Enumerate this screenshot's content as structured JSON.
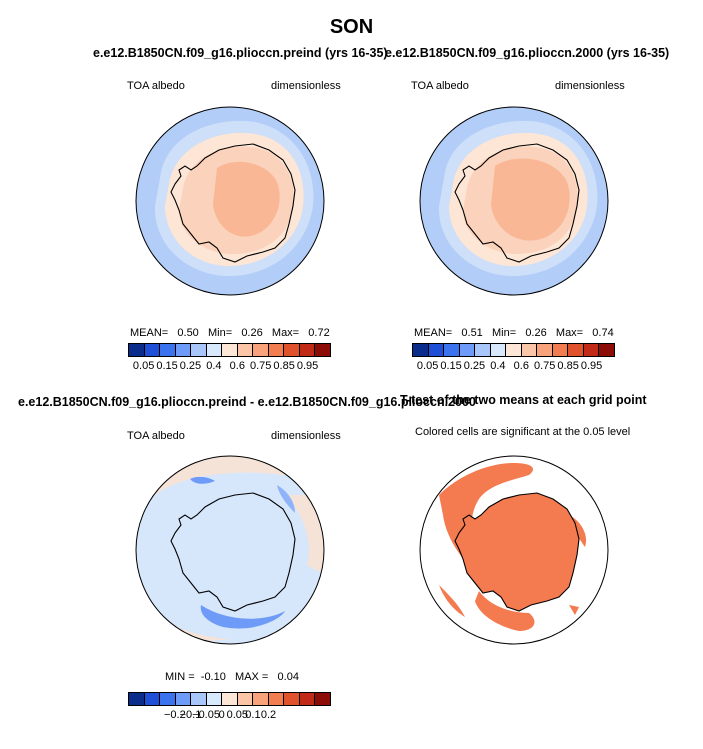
{
  "season": "SON",
  "colors": {
    "cb10": [
      "#0a2c8a",
      "#1f4fd6",
      "#3b73ef",
      "#6e9bf7",
      "#a9c6fb",
      "#d8e8fd",
      "#fde6d5",
      "#fbc6a8",
      "#f8a37c",
      "#f27d51",
      "#e0522c",
      "#c02a16",
      "#8c0d08"
    ],
    "ocean": "#b2cdf7",
    "shelf": "#cddff9",
    "ring": "#eaeaef",
    "land_light": "#fbd2bb",
    "land_mid": "#f9b795",
    "diff_bg": "#d6e6fb",
    "diff_pos": "#fde2cf",
    "diff_neg": "#6e9bf7",
    "sig": "#f47a4f"
  },
  "panels": {
    "p1": {
      "title": "e.e12.B1850CN.f09_g16.pliocc​n.preind (yrs 16-35)",
      "left_label": "TOA albedo",
      "right_label": "dimensionless",
      "stats": {
        "mean_label": "MEAN=",
        "mean": "0.50",
        "min_label": "Min=",
        "min": "0.26",
        "max_label": "Max=",
        "max": "0.72"
      },
      "ticks": [
        "0.05",
        "0.15",
        "0.25",
        "0.4",
        "0.6",
        "0.75",
        "0.85",
        "0.95"
      ]
    },
    "p2": {
      "title": "e.e12.B1850CN.f09_g16.pliocc​n.2000 (yrs 16-35)",
      "left_label": "TOA albedo",
      "right_label": "dimensionless",
      "stats": {
        "mean_label": "MEAN=",
        "mean": "0.51",
        "min_label": "Min=",
        "min": "0.26",
        "max_label": "Max=",
        "max": "0.74"
      },
      "ticks": [
        "0.05",
        "0.15",
        "0.25",
        "0.4",
        "0.6",
        "0.75",
        "0.85",
        "0.95"
      ]
    },
    "p3": {
      "title": "e.e12.B1850CN.f09_g16.pliocc​n.preind - e.e12.B1850CN.f09_g16.pliocc​n.2000",
      "left_label": "TOA albedo",
      "right_label": "dimensionless",
      "stats": {
        "min_label": "MIN =",
        "min": "-0.10",
        "max_label": "MAX =",
        "max": "0.04"
      },
      "ticks": [
        "−0.2",
        "−0.1",
        "−0.05",
        "0",
        "0.05",
        "0.1",
        "0.2"
      ]
    },
    "p4": {
      "title": "T-test of the two means at each grid point",
      "subtitle": "Colored cells are significant at the 0.05 level"
    }
  }
}
